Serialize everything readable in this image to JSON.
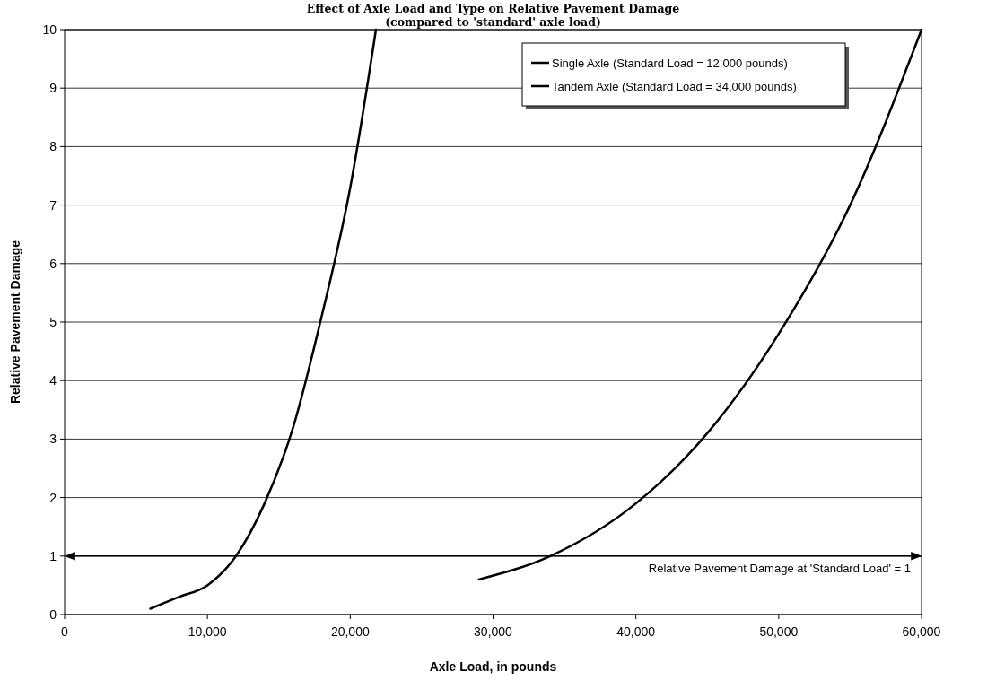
{
  "chart_data": {
    "type": "line",
    "title": "Effect of Axle Load and Type on Relative Pavement Damage",
    "subtitle": "(compared to 'standard' axle load)",
    "xlabel": "Axle Load, in pounds",
    "ylabel": "Relative Pavement Damage",
    "series": [
      {
        "name": "Single Axle (Standard Load = 12,000 pounds)",
        "color": "#000000",
        "x": [
          6000,
          8000,
          10000,
          12000,
          14000,
          16000,
          18000,
          20000,
          21800
        ],
        "values": [
          0.1,
          0.3,
          0.5,
          1.0,
          1.9,
          3.2,
          5.1,
          7.3,
          10
        ]
      },
      {
        "name": "Tandem Axle (Standard Load = 34,000 pounds)",
        "color": "#000000",
        "x": [
          29000,
          34000,
          40000,
          45000,
          50000,
          55000,
          60000
        ],
        "values": [
          0.6,
          1.0,
          1.9,
          3.1,
          4.8,
          7.0,
          10
        ]
      }
    ],
    "xlim": [
      0,
      60000
    ],
    "xticks": [
      0,
      {
        "value": 10000,
        "label": "10,000"
      },
      {
        "value": 20000,
        "label": "20,000"
      },
      {
        "value": 30000,
        "label": "30,000"
      },
      {
        "value": 40000,
        "label": "40,000"
      },
      {
        "value": 50000,
        "label": "50,000"
      },
      {
        "value": 60000,
        "label": "60,000"
      }
    ],
    "ylim": [
      0,
      10
    ],
    "yticks": [
      0,
      1,
      2,
      3,
      4,
      5,
      6,
      7,
      8,
      9,
      10
    ],
    "grid": "y",
    "legend": "top right",
    "marker": "none",
    "line_style": "solid",
    "ref_lines": [
      {
        "axis": "y",
        "value": 1,
        "label": "Relative Pavement Damage at 'Standard Load' = 1",
        "color": "#000000"
      }
    ]
  }
}
